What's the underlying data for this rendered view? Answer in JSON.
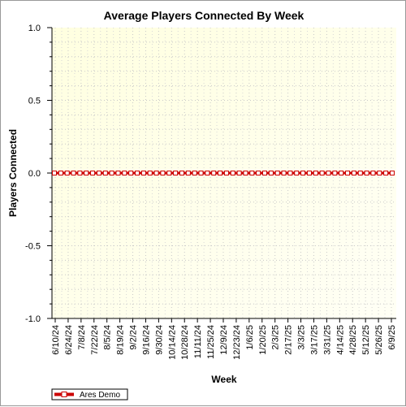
{
  "chart_data": {
    "type": "line",
    "title": "Average Players Connected By Week",
    "xlabel": "Week",
    "ylabel": "Players Connected",
    "ylim": [
      -1.0,
      1.0
    ],
    "y_ticks": [
      "1.0",
      "0.5",
      "0.0",
      "-0.5",
      "-1.0"
    ],
    "y_tick_values": [
      1.0,
      0.5,
      0.0,
      -0.5,
      -1.0
    ],
    "x_tick_labels": [
      "6/10/24",
      "6/24/24",
      "7/8/24",
      "7/22/24",
      "8/5/24",
      "8/19/24",
      "9/2/24",
      "9/16/24",
      "9/30/24",
      "10/14/24",
      "10/28/24",
      "11/11/24",
      "11/25/24",
      "12/9/24",
      "12/23/24",
      "1/6/25",
      "1/20/25",
      "2/3/25",
      "2/17/25",
      "3/3/25",
      "3/17/25",
      "3/31/25",
      "4/14/25",
      "4/28/25",
      "5/12/25",
      "5/26/25",
      "6/9/25"
    ],
    "grid": true,
    "legend_position": "bottom-left",
    "series": [
      {
        "name": "Ares Demo",
        "color": "#cc0000",
        "values": [
          0,
          0,
          0,
          0,
          0,
          0,
          0,
          0,
          0,
          0,
          0,
          0,
          0,
          0,
          0,
          0,
          0,
          0,
          0,
          0,
          0,
          0,
          0,
          0,
          0,
          0,
          0,
          0,
          0,
          0,
          0,
          0,
          0,
          0,
          0,
          0,
          0,
          0,
          0,
          0,
          0,
          0,
          0,
          0,
          0,
          0,
          0,
          0,
          0,
          0,
          0,
          0,
          0,
          0
        ]
      }
    ],
    "plot_background": [
      "#ffffe0",
      "#fffff5"
    ]
  }
}
